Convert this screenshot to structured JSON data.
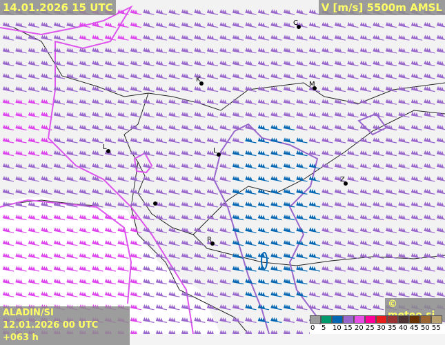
{
  "header": {
    "valid_time": "14.01.2026 15 UTC",
    "parameter": "V [m/s] 5500m AMSL"
  },
  "footer": {
    "model": "ALADIN/SI",
    "run": "12.01.2026 00 UTC +063 h",
    "copyright": "© meteo.si"
  },
  "cities": [
    {
      "label": "C"
    },
    {
      "label": "K"
    },
    {
      "label": "M"
    },
    {
      "label": "L"
    },
    {
      "label": "L"
    },
    {
      "label": "Z"
    },
    {
      "label": "R"
    },
    {
      "label": ""
    }
  ],
  "legend": {
    "ticks": [
      "0",
      "5",
      "10",
      "15",
      "20",
      "25",
      "30",
      "35",
      "40",
      "45",
      "50",
      "55"
    ],
    "colors": [
      "#9c9c9c",
      "#00996b",
      "#0066b3",
      "#9966cc",
      "#e64ee6",
      "#ff0099",
      "#e61e1e",
      "#993333",
      "#4d3333",
      "#663300",
      "#996633",
      "#b8a070"
    ]
  },
  "colors": {
    "barb_15_20": "#9966cc",
    "barb_20_25": "#dd44ee",
    "barb_10_15": "#0066b3",
    "contour_20": "#dd55ee",
    "contour_15": "#9966cc"
  }
}
